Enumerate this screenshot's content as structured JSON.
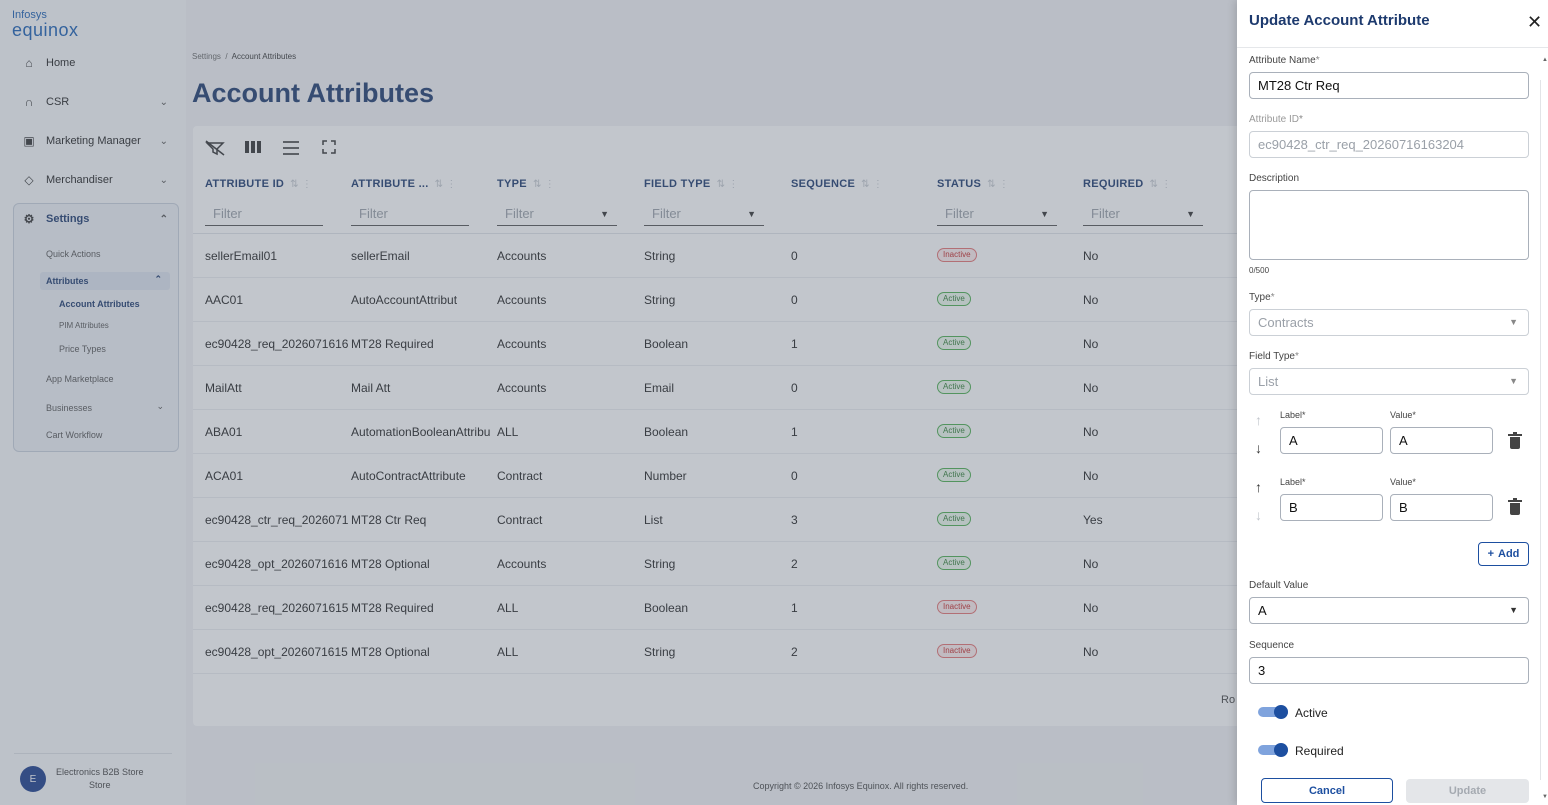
{
  "brand": {
    "line1": "Infosys",
    "line2": "equinox"
  },
  "sidebar": {
    "items": [
      {
        "label": "Home",
        "icon": "home-icon",
        "glyph": "⌂"
      },
      {
        "label": "CSR",
        "icon": "headset-icon",
        "glyph": "∩"
      },
      {
        "label": "Marketing Manager",
        "icon": "marketing-icon",
        "glyph": "▣"
      },
      {
        "label": "Merchandiser",
        "icon": "tag-icon",
        "glyph": "◇"
      },
      {
        "label": "Settings",
        "icon": "gear-icon",
        "glyph": "⚙"
      }
    ],
    "settings_sub": {
      "quick_actions": "Quick Actions",
      "attributes": "Attributes",
      "account_attributes": "Account Attributes",
      "pim_attributes": "PIM Attributes",
      "price_types": "Price Types",
      "app_marketplace": "App Marketplace",
      "businesses": "Businesses",
      "cart_workflow": "Cart Workflow"
    },
    "store": {
      "initial": "E",
      "name": "Electronics B2B Store",
      "type": "Store"
    }
  },
  "breadcrumb": {
    "parent": "Settings",
    "separator": "/",
    "current": "Account Attributes"
  },
  "page_title": "Account Attributes",
  "grid": {
    "columns": [
      {
        "label": "ATTRIBUTE ID",
        "filter": "Filter",
        "dropdown": false
      },
      {
        "label": "ATTRIBUTE ...",
        "filter": "Filter",
        "dropdown": false
      },
      {
        "label": "TYPE",
        "filter": "Filter",
        "dropdown": true
      },
      {
        "label": "FIELD TYPE",
        "filter": "Filter",
        "dropdown": true
      },
      {
        "label": "SEQUENCE",
        "filter": "",
        "dropdown": false
      },
      {
        "label": "STATUS",
        "filter": "Filter",
        "dropdown": true
      },
      {
        "label": "REQUIRED",
        "filter": "Filter",
        "dropdown": true
      }
    ],
    "rows": [
      {
        "id": "sellerEmail01",
        "name": "sellerEmail",
        "type": "Accounts",
        "field_type": "String",
        "sequence": "0",
        "status": "Inactive",
        "required": "No"
      },
      {
        "id": "AAC01",
        "name": "AutoAccountAttribut",
        "type": "Accounts",
        "field_type": "String",
        "sequence": "0",
        "status": "Active",
        "required": "No"
      },
      {
        "id": "ec90428_req_2026071616",
        "name": "MT28 Required",
        "type": "Accounts",
        "field_type": "Boolean",
        "sequence": "1",
        "status": "Active",
        "required": "No"
      },
      {
        "id": "MailAtt",
        "name": "Mail Att",
        "type": "Accounts",
        "field_type": "Email",
        "sequence": "0",
        "status": "Active",
        "required": "No"
      },
      {
        "id": "ABA01",
        "name": "AutomationBooleanAttribu",
        "type": "ALL",
        "field_type": "Boolean",
        "sequence": "1",
        "status": "Active",
        "required": "No"
      },
      {
        "id": "ACA01",
        "name": "AutoContractAttribute",
        "type": "Contract",
        "field_type": "Number",
        "sequence": "0",
        "status": "Active",
        "required": "No"
      },
      {
        "id": "ec90428_ctr_req_2026071",
        "name": "MT28 Ctr Req",
        "type": "Contract",
        "field_type": "List",
        "sequence": "3",
        "status": "Active",
        "required": "Yes"
      },
      {
        "id": "ec90428_opt_2026071616",
        "name": "MT28 Optional",
        "type": "Accounts",
        "field_type": "String",
        "sequence": "2",
        "status": "Active",
        "required": "No"
      },
      {
        "id": "ec90428_req_2026071615",
        "name": "MT28 Required",
        "type": "ALL",
        "field_type": "Boolean",
        "sequence": "1",
        "status": "Inactive",
        "required": "No"
      },
      {
        "id": "ec90428_opt_2026071615",
        "name": "MT28 Optional",
        "type": "ALL",
        "field_type": "String",
        "sequence": "2",
        "status": "Inactive",
        "required": "No"
      }
    ],
    "rows_label": "Ro"
  },
  "footer": "Copyright © 2026 Infosys Equinox. All rights reserved.",
  "drawer": {
    "title": "Update Account Attribute",
    "close": "✕",
    "attribute_name": {
      "label": "Attribute Name",
      "required": "*",
      "value": "MT28 Ctr Req"
    },
    "attribute_id": {
      "label": "Attribute ID",
      "required": "*",
      "value": "ec90428_ctr_req_20260716163204"
    },
    "description": {
      "label": "Description",
      "value": "",
      "counter": "0/500"
    },
    "type": {
      "label": "Type",
      "required": "*",
      "value": "Contracts"
    },
    "field_type": {
      "label": "Field Type",
      "required": "*",
      "value": "List"
    },
    "list_items": [
      {
        "label_caption": "Label",
        "value_caption": "Value",
        "required": "*",
        "label": "A",
        "value": "A"
      },
      {
        "label_caption": "Label",
        "value_caption": "Value",
        "required": "*",
        "label": "B",
        "value": "B"
      }
    ],
    "add_label": "Add",
    "default_value": {
      "label": "Default Value",
      "value": "A"
    },
    "sequence": {
      "label": "Sequence",
      "value": "3"
    },
    "toggles": {
      "active": "Active",
      "required": "Required"
    },
    "cancel": "Cancel",
    "update": "Update"
  }
}
